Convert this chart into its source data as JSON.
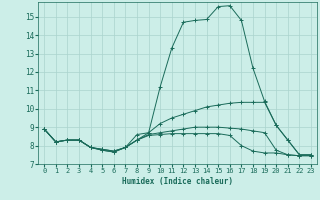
{
  "xlabel": "Humidex (Indice chaleur)",
  "background_color": "#cceee8",
  "grid_color": "#aad4ce",
  "line_color": "#1a6b5a",
  "xlim": [
    -0.5,
    23.5
  ],
  "ylim": [
    7,
    15.8
  ],
  "xticks": [
    0,
    1,
    2,
    3,
    4,
    5,
    6,
    7,
    8,
    9,
    10,
    11,
    12,
    13,
    14,
    15,
    16,
    17,
    18,
    19,
    20,
    21,
    22,
    23
  ],
  "yticks": [
    7,
    8,
    9,
    10,
    11,
    12,
    13,
    14,
    15
  ],
  "line1_y": [
    8.9,
    8.2,
    8.3,
    8.3,
    7.9,
    7.8,
    7.7,
    7.9,
    8.3,
    8.7,
    11.2,
    13.3,
    14.7,
    14.8,
    14.85,
    15.55,
    15.6,
    14.8,
    12.2,
    10.4,
    9.1,
    8.3,
    7.5,
    7.5
  ],
  "line2_y": [
    8.9,
    8.2,
    8.3,
    8.3,
    7.9,
    7.8,
    7.7,
    7.9,
    8.6,
    8.7,
    9.2,
    9.5,
    9.7,
    9.9,
    10.1,
    10.2,
    10.3,
    10.35,
    10.35,
    10.35,
    9.1,
    8.3,
    7.5,
    7.5
  ],
  "line3_y": [
    8.9,
    8.2,
    8.3,
    8.3,
    7.9,
    7.75,
    7.65,
    7.9,
    8.3,
    8.6,
    8.7,
    8.8,
    8.9,
    9.0,
    9.0,
    9.0,
    8.95,
    8.9,
    8.8,
    8.7,
    7.75,
    7.5,
    7.45,
    7.45
  ],
  "line4_y": [
    8.9,
    8.2,
    8.3,
    8.3,
    7.9,
    7.75,
    7.65,
    7.9,
    8.3,
    8.55,
    8.6,
    8.65,
    8.65,
    8.65,
    8.65,
    8.65,
    8.55,
    8.0,
    7.7,
    7.6,
    7.6,
    7.5,
    7.45,
    7.45
  ]
}
